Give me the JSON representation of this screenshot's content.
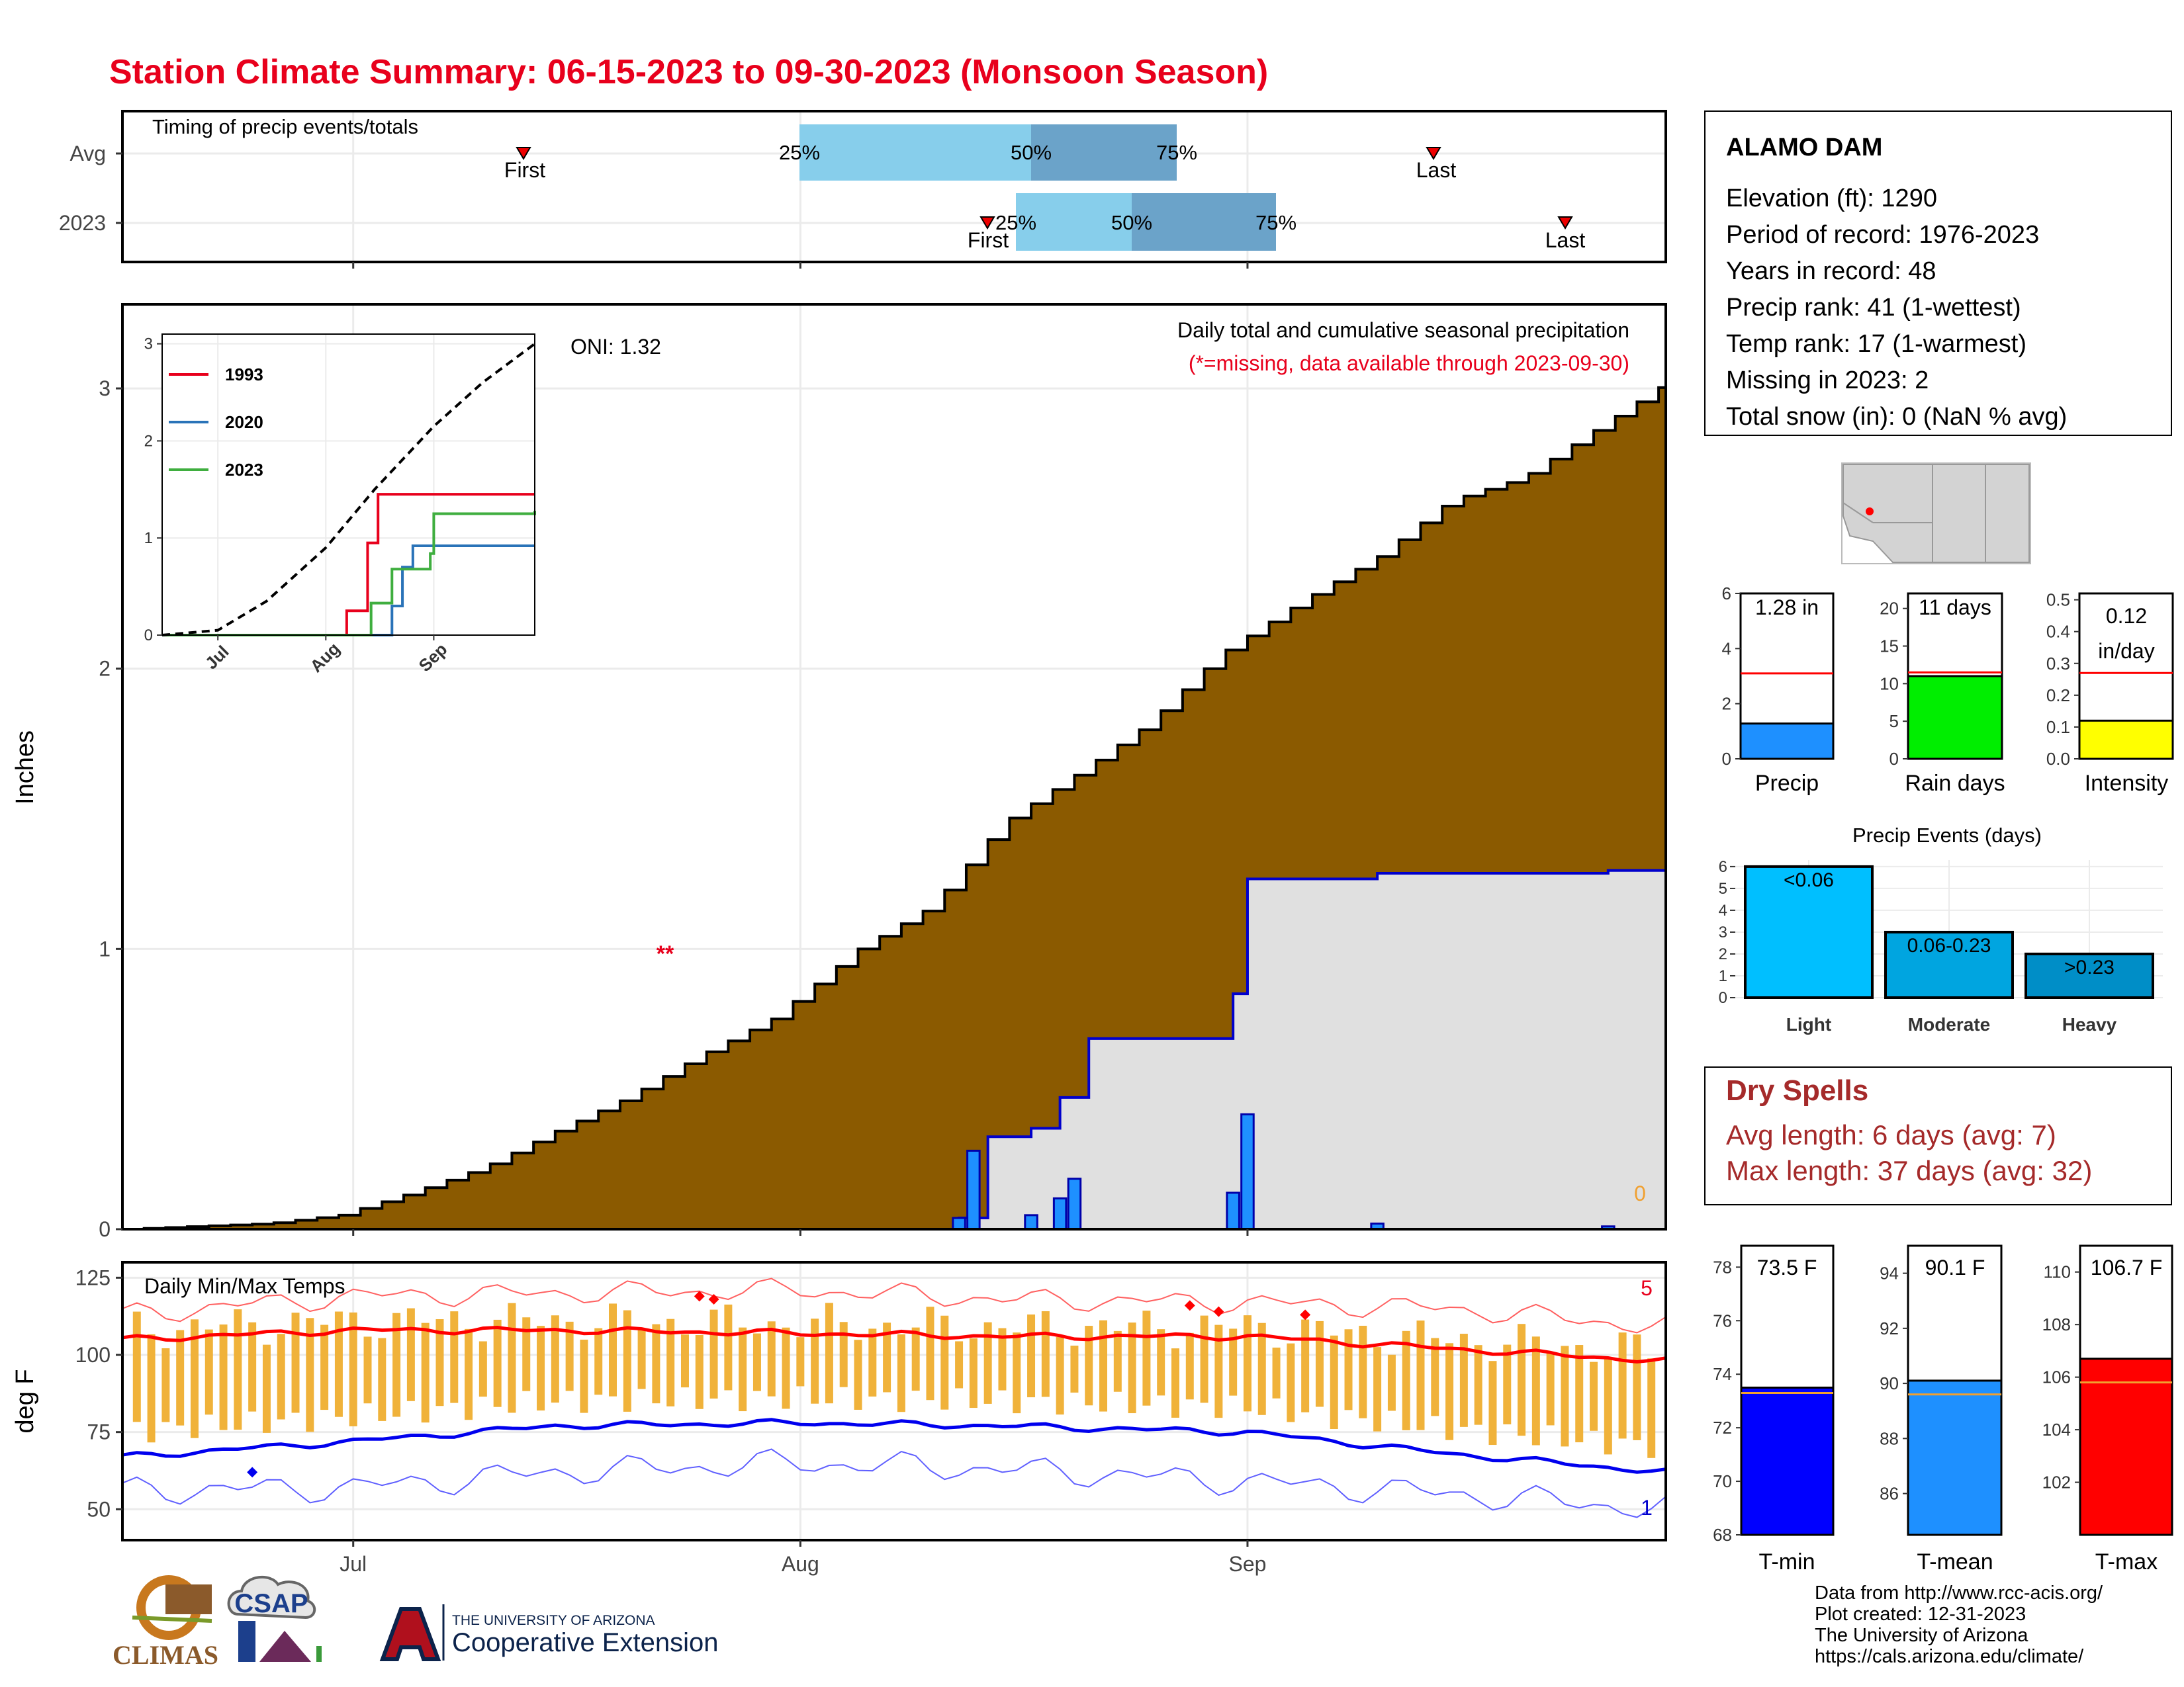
{
  "title": "Station Climate Summary: 06-15-2023 to 09-30-2023 (Monsoon Season)",
  "colors": {
    "title": "#e8001c",
    "cum_fill": "#8b5a00",
    "normal_fill": "#e0e0e0",
    "daily_bar": "#1e90ff",
    "timing_light": "#87ceeb",
    "timing_dark": "#6ba3c9",
    "tmax": "#ff0000",
    "tmin": "#0000ff",
    "temp_bar": "#f0b23a",
    "dryspell": "#a52a2a"
  },
  "timing": {
    "title": "Timing of precip events/totals",
    "rows": [
      "Avg",
      "2023"
    ],
    "first_label": "First",
    "last_label": "Last",
    "q_labels": [
      "25%",
      "50%",
      "75%"
    ]
  },
  "station": {
    "name": "ALAMO DAM",
    "lines": [
      "Elevation (ft): 1290",
      "Period of record: 1976-2023",
      "Years in record: 48",
      "Precip rank: 41 (1-wettest)",
      "Temp rank: 17 (1-warmest)",
      "Missing in 2023: 2",
      "Total snow (in): 0 (NaN % avg)"
    ]
  },
  "main_precip": {
    "ylabel": "Inches",
    "header": "Daily total and cumulative seasonal precipitation",
    "missing_note": "(*=missing, data available through 2023-09-30)",
    "oni": "ONI: 1.32",
    "missing_marker": "**",
    "zero_count": "0",
    "yticks": [
      "0",
      "1",
      "2",
      "3"
    ]
  },
  "inset": {
    "legend": [
      "1993",
      "2020",
      "2023"
    ],
    "legend_colors": [
      "#e8001c",
      "#2a73b8",
      "#3fae3f"
    ],
    "yticks": [
      "0",
      "1",
      "2",
      "3"
    ],
    "xticks": [
      "Jul",
      "Aug",
      "Sep"
    ]
  },
  "temps": {
    "title": "Daily Min/Max Temps",
    "ylabel": "deg F",
    "yticks": [
      "50",
      "75",
      "100",
      "125"
    ],
    "xticks": [
      "Jul",
      "Aug",
      "Sep"
    ],
    "max_record_count": "5",
    "min_record_count": "1"
  },
  "mini_bars": {
    "precip": {
      "label": "Precip",
      "value_label": "1.28 in",
      "yticks": [
        "0",
        "2",
        "4",
        "6"
      ]
    },
    "raindays": {
      "label": "Rain days",
      "value_label": "11 days",
      "yticks": [
        "0",
        "5",
        "10",
        "15",
        "20"
      ]
    },
    "intensity": {
      "label": "Intensity",
      "value_label_1": "0.12",
      "value_label_2": "in/day",
      "yticks": [
        "0.0",
        "0.1",
        "0.2",
        "0.3",
        "0.4",
        "0.5"
      ]
    }
  },
  "events": {
    "title": "Precip Events (days)",
    "categories": [
      "Light",
      "Moderate",
      "Heavy"
    ],
    "bar_labels": [
      "<0.06",
      "0.06-0.23",
      ">0.23"
    ],
    "yticks": [
      "0",
      "1",
      "2",
      "3",
      "4",
      "5",
      "6"
    ]
  },
  "dry_spells": {
    "title": "Dry Spells",
    "avg": "Avg length: 6 days (avg: 7)",
    "max": "Max length: 37 days (avg: 32)"
  },
  "temp_bars": {
    "tmin": {
      "label": "T-min",
      "value_label": "73.5 F",
      "yticks": [
        "68",
        "70",
        "72",
        "74",
        "76",
        "78"
      ]
    },
    "tmean": {
      "label": "T-mean",
      "value_label": "90.1 F",
      "yticks": [
        "86",
        "88",
        "90",
        "92",
        "94"
      ]
    },
    "tmax": {
      "label": "T-max",
      "value_label": "106.7 F",
      "yticks": [
        "102",
        "104",
        "106",
        "108",
        "110"
      ]
    }
  },
  "footer": {
    "lines": [
      "Data from http://www.rcc-acis.org/",
      "Plot created: 12-31-2023",
      "The University of Arizona",
      "https://cals.arizona.edu/climate/"
    ],
    "logo_climas": "CLIMAS",
    "logo_csap": "CSAP",
    "logo_ua_line1": "THE UNIVERSITY OF ARIZONA",
    "logo_ua_line2": "Cooperative Extension"
  },
  "chart_data": [
    {
      "type": "area",
      "title": "Daily total and cumulative seasonal precipitation",
      "ylabel": "Inches",
      "ylim": [
        0,
        3.3
      ],
      "x_range": [
        "2023-06-15",
        "2023-09-30"
      ],
      "series": [
        {
          "name": "Cumulative avg",
          "x": [
            "2023-06-15",
            "2023-06-20",
            "2023-06-25",
            "2023-06-30",
            "2023-07-05",
            "2023-07-10",
            "2023-07-15",
            "2023-07-20",
            "2023-07-25",
            "2023-07-30",
            "2023-08-05",
            "2023-08-10",
            "2023-08-15",
            "2023-08-20",
            "2023-08-25",
            "2023-08-30",
            "2023-09-05",
            "2023-09-10",
            "2023-09-15",
            "2023-09-20",
            "2023-09-25",
            "2023-09-30"
          ],
          "values": [
            0,
            0.01,
            0.02,
            0.05,
            0.13,
            0.22,
            0.35,
            0.47,
            0.62,
            0.75,
            1.0,
            1.15,
            1.45,
            1.62,
            1.8,
            2.05,
            2.25,
            2.4,
            2.6,
            2.68,
            2.85,
            3.02
          ]
        },
        {
          "name": "2023 cumulative",
          "x": [
            "2023-06-15",
            "2023-08-12",
            "2023-08-13",
            "2023-08-14",
            "2023-08-17",
            "2023-08-19",
            "2023-08-21",
            "2023-08-30",
            "2023-08-31",
            "2023-09-01",
            "2023-09-05",
            "2023-09-10",
            "2023-09-26",
            "2023-09-30"
          ],
          "values": [
            0,
            0.04,
            0.04,
            0.33,
            0.36,
            0.47,
            0.68,
            0.68,
            0.84,
            1.25,
            1.25,
            1.27,
            1.28,
            1.28
          ]
        },
        {
          "name": "2023 daily",
          "x": [
            "2023-08-12",
            "2023-08-13",
            "2023-08-17",
            "2023-08-19",
            "2023-08-20",
            "2023-08-31",
            "2023-09-01",
            "2023-09-10",
            "2023-09-26"
          ],
          "values": [
            0.04,
            0.28,
            0.05,
            0.11,
            0.18,
            0.13,
            0.41,
            0.02,
            0.01
          ]
        }
      ]
    },
    {
      "type": "line",
      "title": "",
      "xticks": [
        "Jul",
        "Aug",
        "Sep"
      ],
      "ylim": [
        0,
        3
      ],
      "series": [
        {
          "name": "1993",
          "x": [
            "2023-06-15",
            "2023-08-01",
            "2023-08-07",
            "2023-08-10",
            "2023-08-13",
            "2023-08-16",
            "2023-09-30"
          ],
          "values": [
            0,
            0,
            0.25,
            0.25,
            0.95,
            1.45,
            1.45
          ]
        },
        {
          "name": "2020",
          "x": [
            "2023-06-15",
            "2023-08-10",
            "2023-08-20",
            "2023-08-23",
            "2023-08-26",
            "2023-09-30"
          ],
          "values": [
            0,
            0,
            0.3,
            0.7,
            0.92,
            0.92
          ]
        },
        {
          "name": "2023",
          "x": [
            "2023-06-15",
            "2023-08-12",
            "2023-08-14",
            "2023-08-20",
            "2023-08-31",
            "2023-09-01",
            "2023-09-30"
          ],
          "values": [
            0,
            0,
            0.33,
            0.68,
            0.84,
            1.25,
            1.28
          ]
        },
        {
          "name": "Avg",
          "x": [
            "2023-06-15",
            "2023-07-01",
            "2023-07-15",
            "2023-08-01",
            "2023-08-15",
            "2023-09-01",
            "2023-09-15",
            "2023-09-30"
          ],
          "values": [
            0,
            0.05,
            0.35,
            0.9,
            1.5,
            2.15,
            2.6,
            3.0
          ]
        }
      ]
    },
    {
      "type": "line",
      "title": "Daily Min/Max Temps",
      "ylabel": "deg F",
      "ylim": [
        40,
        130
      ],
      "x_range": [
        "2023-06-15",
        "2023-09-30"
      ],
      "series": [
        {
          "name": "Avg max",
          "x": [
            "2023-06-15",
            "2023-07-01",
            "2023-07-15",
            "2023-08-01",
            "2023-08-15",
            "2023-09-01",
            "2023-09-15",
            "2023-09-30"
          ],
          "values": [
            105,
            108,
            108,
            107,
            106,
            106,
            102,
            98
          ]
        },
        {
          "name": "Avg min",
          "x": [
            "2023-06-15",
            "2023-07-01",
            "2023-07-15",
            "2023-08-01",
            "2023-08-15",
            "2023-09-01",
            "2023-09-15",
            "2023-09-30"
          ],
          "values": [
            67,
            72,
            77,
            78,
            77,
            75,
            68,
            62
          ]
        },
        {
          "name": "Record max",
          "x": [
            "2023-06-15",
            "2023-07-01",
            "2023-07-15",
            "2023-08-01",
            "2023-08-15",
            "2023-09-01",
            "2023-09-15",
            "2023-09-30"
          ],
          "values": [
            113,
            119,
            120,
            121,
            118,
            117,
            115,
            109
          ]
        },
        {
          "name": "Record min",
          "x": [
            "2023-06-15",
            "2023-07-01",
            "2023-07-15",
            "2023-08-01",
            "2023-08-15",
            "2023-09-01",
            "2023-09-15",
            "2023-09-30"
          ],
          "values": [
            56,
            57,
            62,
            65,
            63,
            59,
            55,
            50
          ]
        }
      ]
    },
    {
      "type": "bar",
      "title": "Precip Events (days)",
      "categories": [
        "Light",
        "Moderate",
        "Heavy"
      ],
      "values": [
        6,
        3,
        2
      ],
      "ylim": [
        0,
        6
      ]
    },
    {
      "type": "bar",
      "categories": [
        "Precip",
        "Rain days",
        "Intensity"
      ],
      "values": [
        1.28,
        11,
        0.12
      ],
      "averages": [
        3.1,
        11.5,
        0.27
      ]
    },
    {
      "type": "bar",
      "categories": [
        "T-min",
        "T-mean",
        "T-max"
      ],
      "values": [
        73.5,
        90.1,
        106.7
      ],
      "averages": [
        73.3,
        89.6,
        105.8
      ]
    }
  ]
}
